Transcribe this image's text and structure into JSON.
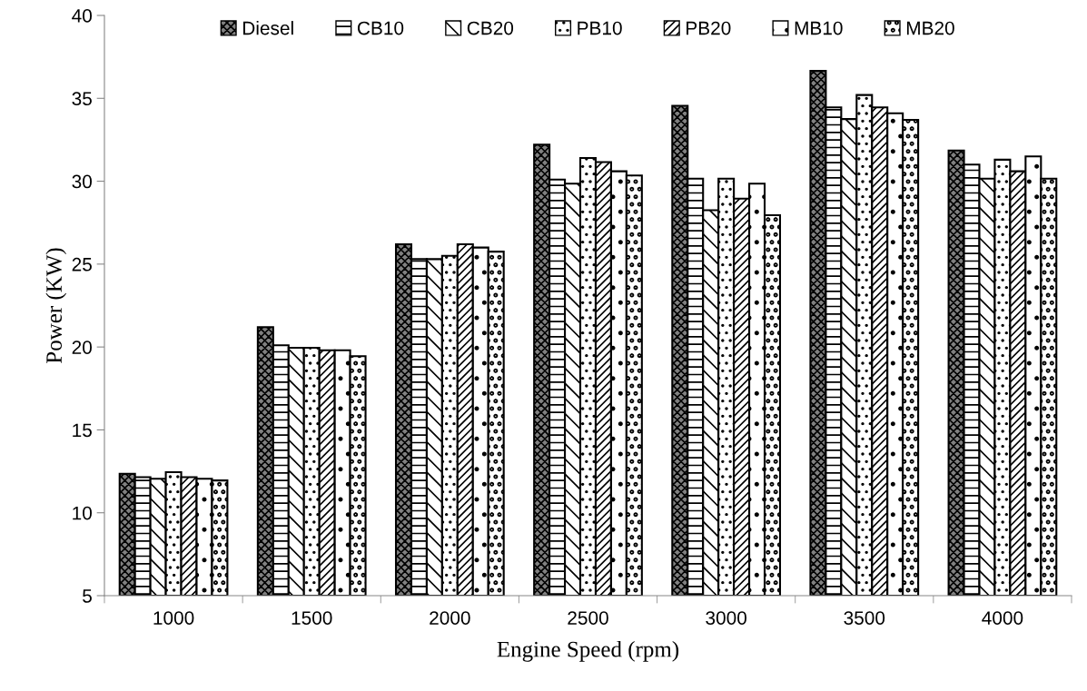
{
  "chart_data": {
    "type": "bar",
    "xlabel": "Engine Speed (rpm)",
    "ylabel": "Power (KW)",
    "categories": [
      "1000",
      "1500",
      "2000",
      "2500",
      "3000",
      "3500",
      "4000"
    ],
    "series": [
      {
        "name": "Diesel",
        "color": "#000000",
        "values": [
          12.35,
          21.2,
          26.2,
          32.2,
          34.55,
          36.65,
          31.85
        ]
      },
      {
        "name": "CB10",
        "color": "#000000",
        "values": [
          12.15,
          20.1,
          25.3,
          30.1,
          30.15,
          34.45,
          31.0
        ]
      },
      {
        "name": "CB20",
        "color": "#000000",
        "values": [
          12.05,
          19.95,
          25.3,
          29.85,
          28.25,
          33.75,
          30.15
        ]
      },
      {
        "name": "PB10",
        "color": "#000000",
        "values": [
          12.45,
          19.95,
          25.5,
          31.4,
          30.15,
          35.2,
          31.3
        ]
      },
      {
        "name": "PB20",
        "color": "#000000",
        "values": [
          12.15,
          19.8,
          26.2,
          31.15,
          28.95,
          34.45,
          30.6
        ]
      },
      {
        "name": "MB10",
        "color": "#000000",
        "values": [
          12.05,
          19.8,
          26.0,
          30.6,
          29.85,
          34.1,
          31.5
        ]
      },
      {
        "name": "MB20",
        "color": "#000000",
        "values": [
          11.95,
          19.45,
          25.75,
          30.35,
          27.95,
          33.7,
          30.15
        ]
      }
    ],
    "ylim": [
      5,
      40
    ],
    "yticks": [
      5,
      10,
      15,
      20,
      25,
      30,
      35,
      40
    ],
    "grid": false,
    "legend": "top"
  }
}
